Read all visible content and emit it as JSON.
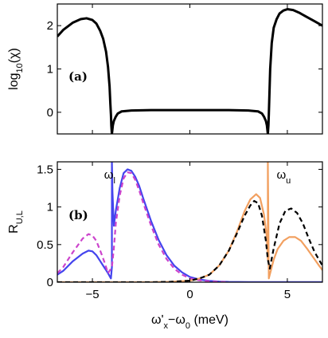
{
  "chart_data": [
    {
      "type": "line",
      "panel_label": "(a)",
      "ylabel": "log10(χ)",
      "ylabel_parts": {
        "base": "log",
        "sub": "10",
        "arg": "(χ)"
      },
      "xlim": [
        -6.8,
        6.8
      ],
      "ylim": [
        -0.5,
        2.5
      ],
      "yticks": [
        0,
        1,
        2
      ],
      "xticks": [
        -5,
        0,
        5
      ],
      "series": [
        {
          "color": "#000000",
          "x": [
            -6.8,
            -6.5,
            -6.0,
            -5.6,
            -5.3,
            -5.0,
            -4.8,
            -4.6,
            -4.45,
            -4.3,
            -4.2,
            -4.12,
            -4.08,
            -4.05,
            -4.03,
            -4.0,
            -3.98,
            -3.95,
            -3.9,
            -3.8,
            -3.7,
            -3.5,
            -3.0,
            -2.0,
            -1.0,
            0.0,
            1.0,
            2.0,
            3.0,
            3.5,
            3.7,
            3.8,
            3.9,
            3.95,
            3.98,
            4.0,
            4.03,
            4.05,
            4.08,
            4.12,
            4.2,
            4.3,
            4.45,
            4.6,
            4.8,
            5.0,
            5.3,
            5.6,
            6.0,
            6.4,
            6.8
          ],
          "y": [
            1.75,
            1.9,
            2.07,
            2.15,
            2.17,
            2.13,
            2.05,
            1.88,
            1.7,
            1.4,
            1.05,
            0.6,
            0.2,
            -0.05,
            -0.3,
            -0.5,
            -0.42,
            -0.3,
            -0.2,
            -0.1,
            -0.03,
            0.02,
            0.04,
            0.05,
            0.05,
            0.05,
            0.05,
            0.05,
            0.04,
            0.02,
            -0.03,
            -0.1,
            -0.2,
            -0.3,
            -0.42,
            -0.5,
            -0.3,
            -0.05,
            0.4,
            1.0,
            1.6,
            1.95,
            2.15,
            2.28,
            2.35,
            2.38,
            2.36,
            2.3,
            2.2,
            2.1,
            2.0
          ]
        }
      ]
    },
    {
      "type": "line",
      "panel_label": "(b)",
      "ylabel": "RU,L",
      "ylabel_parts": {
        "base": "R",
        "sub": "U,L"
      },
      "xlabel": "ω'x−ω0 (meV)",
      "xlabel_parts": {
        "w1": "ω'",
        "sub1": "x",
        "mid": "−ω",
        "sub2": "0",
        "unit": " (meV)"
      },
      "annotations": [
        {
          "base": "ω",
          "sub": "l",
          "x": -4.4,
          "y": 1.38
        },
        {
          "base": "ω",
          "sub": "u",
          "x": 4.45,
          "y": 1.38
        }
      ],
      "xlim": [
        -6.8,
        6.8
      ],
      "ylim": [
        0,
        1.6
      ],
      "yticks": [
        0,
        0.5,
        1,
        1.5
      ],
      "ytick_labels": [
        "0",
        "0.5",
        "1",
        "1.5"
      ],
      "xticks": [
        -5,
        0,
        5
      ],
      "xtick_labels": [
        "−5",
        "0",
        "5"
      ],
      "series": [
        {
          "color": "#4444ee",
          "style": "solid",
          "x": [
            -6.8,
            -6.5,
            -6.0,
            -5.5,
            -5.2,
            -5.0,
            -4.8,
            -4.6,
            -4.4,
            -4.2,
            -4.05,
            -4.0,
            -4.0,
            -3.97,
            -3.9,
            -3.8,
            -3.6,
            -3.4,
            -3.2,
            -3.0,
            -2.8,
            -2.6,
            -2.4,
            -2.0,
            -1.6,
            -1.2,
            -0.8,
            -0.4,
            0.0,
            0.5,
            1.0,
            1.5,
            2.0,
            3.0,
            4.0,
            5.0,
            6.0,
            6.8
          ],
          "y": [
            0.1,
            0.15,
            0.28,
            0.38,
            0.42,
            0.41,
            0.36,
            0.28,
            0.2,
            0.12,
            0.05,
            0.2,
            1.6,
            1.2,
            0.75,
            0.95,
            1.25,
            1.45,
            1.5,
            1.48,
            1.4,
            1.28,
            1.12,
            0.82,
            0.56,
            0.36,
            0.22,
            0.13,
            0.07,
            0.035,
            0.017,
            0.008,
            0.004,
            0.002,
            0.002,
            0.001,
            0.001,
            0.001
          ]
        },
        {
          "color": "#cc44cc",
          "style": "dashed",
          "x": [
            -6.8,
            -6.5,
            -6.0,
            -5.5,
            -5.2,
            -5.0,
            -4.8,
            -4.6,
            -4.4,
            -4.2,
            -4.0,
            -3.9,
            -3.8,
            -3.6,
            -3.4,
            -3.2,
            -3.0,
            -2.8,
            -2.6,
            -2.4,
            -2.0,
            -1.6,
            -1.2,
            -0.8,
            -0.4,
            0.0,
            0.5,
            1.0,
            1.5,
            2.0
          ],
          "y": [
            0.12,
            0.2,
            0.4,
            0.58,
            0.64,
            0.62,
            0.55,
            0.42,
            0.28,
            0.12,
            0.2,
            0.45,
            0.78,
            1.15,
            1.38,
            1.46,
            1.45,
            1.36,
            1.22,
            1.06,
            0.76,
            0.5,
            0.31,
            0.18,
            0.1,
            0.05,
            0.025,
            0.012,
            0.005,
            0.002
          ]
        },
        {
          "color": "#f2a060",
          "style": "solid",
          "x": [
            -6.8,
            -2.0,
            -1.0,
            0.0,
            0.5,
            1.0,
            1.5,
            2.0,
            2.4,
            2.8,
            3.1,
            3.4,
            3.6,
            3.8,
            3.95,
            4.0,
            4.0,
            4.05,
            4.15,
            4.3,
            4.5,
            4.8,
            5.1,
            5.4,
            5.7,
            6.0,
            6.3,
            6.6,
            6.8
          ],
          "y": [
            0.0,
            0.0,
            0.005,
            0.02,
            0.05,
            0.1,
            0.22,
            0.42,
            0.66,
            0.94,
            1.1,
            1.17,
            1.12,
            0.9,
            0.6,
            0.3,
            1.6,
            0.05,
            0.15,
            0.3,
            0.44,
            0.55,
            0.6,
            0.6,
            0.55,
            0.45,
            0.34,
            0.23,
            0.16
          ]
        },
        {
          "color": "#000000",
          "style": "dashed",
          "x": [
            -6.8,
            -2.0,
            -1.0,
            0.0,
            0.5,
            1.0,
            1.5,
            2.0,
            2.4,
            2.8,
            3.1,
            3.3,
            3.5,
            3.7,
            3.9,
            4.0,
            4.1,
            4.3,
            4.6,
            4.9,
            5.2,
            5.5,
            5.8,
            6.1,
            6.4,
            6.8
          ],
          "y": [
            0.0,
            0.0,
            0.005,
            0.02,
            0.05,
            0.1,
            0.22,
            0.42,
            0.64,
            0.88,
            1.02,
            1.08,
            1.05,
            0.88,
            0.55,
            0.3,
            0.18,
            0.45,
            0.78,
            0.95,
            0.98,
            0.92,
            0.78,
            0.58,
            0.4,
            0.22
          ]
        }
      ]
    }
  ]
}
